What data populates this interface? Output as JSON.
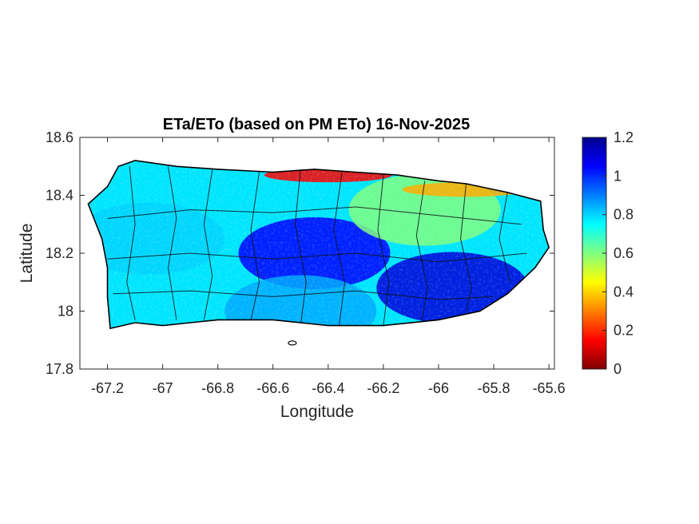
{
  "title": "ETa/ETo (based on PM ETo) 16-Nov-2025",
  "xlabel": "Longitude",
  "ylabel": "Latitude",
  "x_ticks": [
    "-67.2",
    "-67",
    "-66.8",
    "-66.6",
    "-66.4",
    "-66.2",
    "-66",
    "-65.8",
    "-65.6"
  ],
  "y_ticks": [
    "18.6",
    "18.4",
    "18.2",
    "18",
    "17.8"
  ],
  "colorbar_ticks": [
    "1.2",
    "1",
    "0.8",
    "0.6",
    "0.4",
    "0.2",
    "0"
  ],
  "chart_data": {
    "type": "heatmap",
    "title": "ETa/ETo (based on PM ETo) 16-Nov-2025",
    "xlabel": "Longitude",
    "ylabel": "Latitude",
    "xlim": [
      -67.3,
      -65.58
    ],
    "ylim": [
      17.8,
      18.6
    ],
    "x_ticks": [
      -67.2,
      -67,
      -66.8,
      -66.6,
      -66.4,
      -66.2,
      -66,
      -65.8,
      -65.6
    ],
    "y_ticks": [
      17.8,
      18,
      18.2,
      18.4,
      18.6
    ],
    "colorbar": {
      "range": [
        0,
        1.2
      ],
      "ticks": [
        0,
        0.2,
        0.4,
        0.6,
        0.8,
        1,
        1.2
      ],
      "colormap": "jet"
    },
    "grid": false,
    "island_outline": [
      [
        -67.27,
        18.37
      ],
      [
        -67.2,
        18.43
      ],
      [
        -67.16,
        18.5
      ],
      [
        -67.1,
        18.52
      ],
      [
        -66.95,
        18.5
      ],
      [
        -66.8,
        18.49
      ],
      [
        -66.6,
        18.48
      ],
      [
        -66.45,
        18.49
      ],
      [
        -66.3,
        18.48
      ],
      [
        -66.15,
        18.47
      ],
      [
        -66.0,
        18.45
      ],
      [
        -65.9,
        18.44
      ],
      [
        -65.75,
        18.41
      ],
      [
        -65.63,
        18.38
      ],
      [
        -65.62,
        18.28
      ],
      [
        -65.6,
        18.22
      ],
      [
        -65.65,
        18.15
      ],
      [
        -65.75,
        18.06
      ],
      [
        -65.85,
        18.0
      ],
      [
        -66.0,
        17.97
      ],
      [
        -66.2,
        17.95
      ],
      [
        -66.4,
        17.95
      ],
      [
        -66.6,
        17.97
      ],
      [
        -66.8,
        17.97
      ],
      [
        -67.0,
        17.95
      ],
      [
        -67.1,
        17.96
      ],
      [
        -67.19,
        17.94
      ],
      [
        -67.2,
        18.05
      ],
      [
        -67.2,
        18.15
      ],
      [
        -67.22,
        18.25
      ],
      [
        -67.27,
        18.37
      ]
    ],
    "value_zones": [
      {
        "region": "central interior",
        "lon": -66.45,
        "lat": 18.2,
        "value": 1.05
      },
      {
        "region": "east-southeast",
        "lon": -65.95,
        "lat": 18.08,
        "value": 1.1
      },
      {
        "region": "west",
        "lon": -67.05,
        "lat": 18.25,
        "value": 0.8
      },
      {
        "region": "south coast",
        "lon": -66.5,
        "lat": 18.0,
        "value": 0.85
      },
      {
        "region": "northeast",
        "lon": -66.05,
        "lat": 18.35,
        "value": 0.6
      },
      {
        "region": "north coast",
        "lon": -66.4,
        "lat": 18.47,
        "value": 0.15
      },
      {
        "region": "northeast coast",
        "lon": -65.9,
        "lat": 18.42,
        "value": 0.35
      }
    ]
  }
}
